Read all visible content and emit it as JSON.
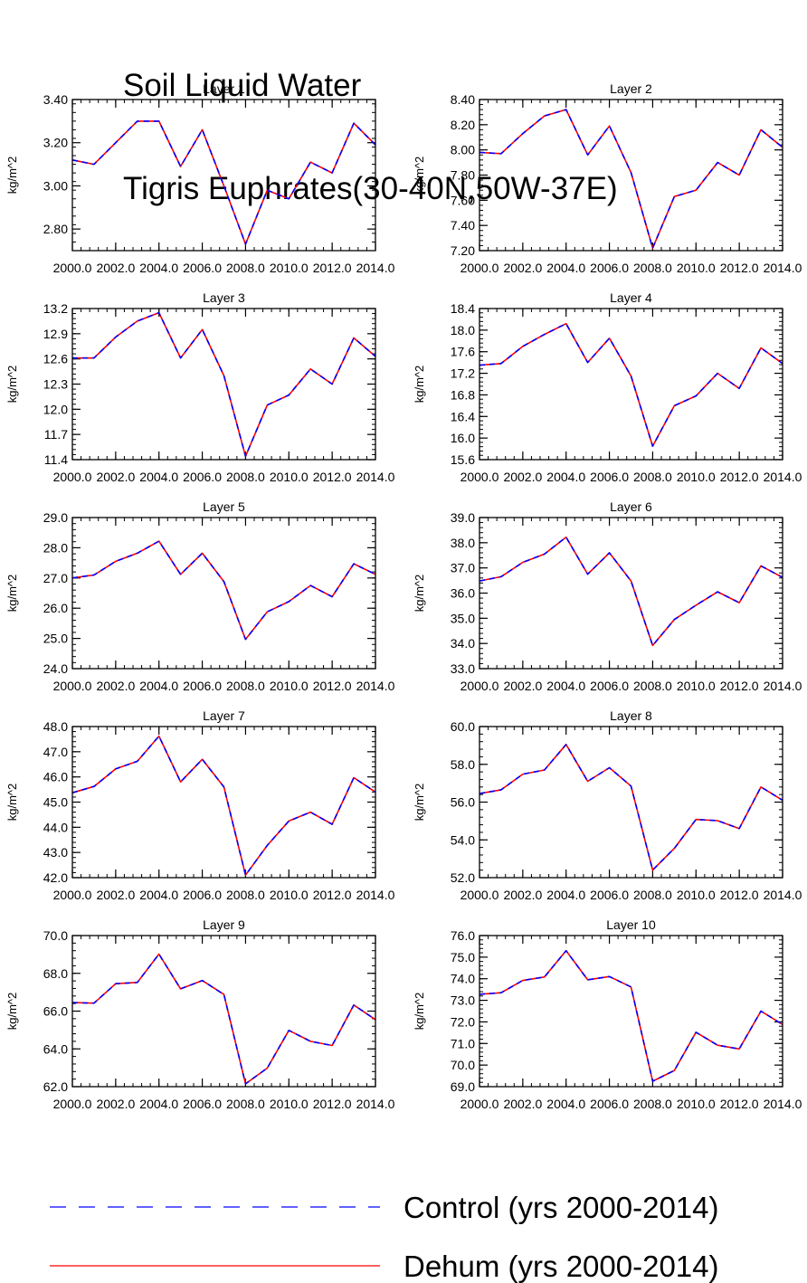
{
  "title": {
    "line1": "Soil Liquid Water",
    "line2": "Tigris Euphrates(30-40N,50W-37E)"
  },
  "colors": {
    "control": "#0000ff",
    "dehum": "#ff0000",
    "axis": "#000000"
  },
  "legend": {
    "control_label": "Control (yrs 2000-2014)",
    "dehum_label": "Dehum (yrs 2000-2014)"
  },
  "chart_data": [
    {
      "type": "line",
      "title": "Layer 1",
      "ylabel": "kg/m^2",
      "x": [
        2000,
        2001,
        2002,
        2003,
        2004,
        2005,
        2006,
        2007,
        2008,
        2009,
        2010,
        2011,
        2012,
        2013,
        2014
      ],
      "xticks": [
        "2000.0",
        "2002.0",
        "2004.0",
        "2006.0",
        "2008.0",
        "2010.0",
        "2012.0",
        "2014.0"
      ],
      "yticks": [
        "2.80",
        "3.00",
        "3.20",
        "3.40"
      ],
      "ylim": [
        2.7,
        3.4
      ],
      "series": [
        {
          "name": "Control (yrs 2000-2014)",
          "values": [
            3.12,
            3.1,
            3.2,
            3.3,
            3.3,
            3.09,
            3.26,
            3.0,
            2.73,
            2.98,
            2.94,
            3.11,
            3.06,
            3.29,
            3.19
          ]
        },
        {
          "name": "Dehum (yrs 2000-2014)",
          "values": [
            3.12,
            3.1,
            3.2,
            3.3,
            3.3,
            3.09,
            3.26,
            3.0,
            2.73,
            2.98,
            2.94,
            3.11,
            3.06,
            3.29,
            3.19
          ]
        }
      ]
    },
    {
      "type": "line",
      "title": "Layer 2",
      "ylabel": "kg/m^2",
      "x": [
        2000,
        2001,
        2002,
        2003,
        2004,
        2005,
        2006,
        2007,
        2008,
        2009,
        2010,
        2011,
        2012,
        2013,
        2014
      ],
      "xticks": [
        "2000.0",
        "2002.0",
        "2004.0",
        "2006.0",
        "2008.0",
        "2010.0",
        "2012.0",
        "2014.0"
      ],
      "yticks": [
        "7.20",
        "7.40",
        "7.60",
        "7.80",
        "8.00",
        "8.20",
        "8.40"
      ],
      "ylim": [
        7.2,
        8.4
      ],
      "series": [
        {
          "name": "Control (yrs 2000-2014)",
          "values": [
            7.98,
            7.97,
            8.13,
            8.27,
            8.32,
            7.96,
            8.19,
            7.82,
            7.22,
            7.63,
            7.68,
            7.9,
            7.8,
            8.16,
            8.02
          ]
        },
        {
          "name": "Dehum (yrs 2000-2014)",
          "values": [
            7.98,
            7.97,
            8.13,
            8.27,
            8.32,
            7.96,
            8.19,
            7.82,
            7.22,
            7.63,
            7.68,
            7.9,
            7.8,
            8.16,
            8.02
          ]
        }
      ]
    },
    {
      "type": "line",
      "title": "Layer 3",
      "ylabel": "kg/m^2",
      "x": [
        2000,
        2001,
        2002,
        2003,
        2004,
        2005,
        2006,
        2007,
        2008,
        2009,
        2010,
        2011,
        2012,
        2013,
        2014
      ],
      "xticks": [
        "2000.0",
        "2002.0",
        "2004.0",
        "2006.0",
        "2008.0",
        "2010.0",
        "2012.0",
        "2014.0"
      ],
      "yticks": [
        "11.4",
        "11.7",
        "12.0",
        "12.3",
        "12.6",
        "12.9",
        "13.2"
      ],
      "ylim": [
        11.4,
        13.2
      ],
      "series": [
        {
          "name": "Control (yrs 2000-2014)",
          "values": [
            12.61,
            12.61,
            12.86,
            13.05,
            13.15,
            12.61,
            12.95,
            12.4,
            11.44,
            12.05,
            12.17,
            12.48,
            12.3,
            12.85,
            12.63
          ]
        },
        {
          "name": "Dehum (yrs 2000-2014)",
          "values": [
            12.61,
            12.61,
            12.86,
            13.05,
            13.15,
            12.61,
            12.95,
            12.4,
            11.44,
            12.05,
            12.17,
            12.48,
            12.3,
            12.85,
            12.63
          ]
        }
      ]
    },
    {
      "type": "line",
      "title": "Layer 4",
      "ylabel": "kg/m^2",
      "x": [
        2000,
        2001,
        2002,
        2003,
        2004,
        2005,
        2006,
        2007,
        2008,
        2009,
        2010,
        2011,
        2012,
        2013,
        2014
      ],
      "xticks": [
        "2000.0",
        "2002.0",
        "2004.0",
        "2006.0",
        "2008.0",
        "2010.0",
        "2012.0",
        "2014.0"
      ],
      "yticks": [
        "15.6",
        "16.0",
        "16.4",
        "16.8",
        "17.2",
        "17.6",
        "18.0",
        "18.4"
      ],
      "ylim": [
        15.6,
        18.4
      ],
      "series": [
        {
          "name": "Control (yrs 2000-2014)",
          "values": [
            17.35,
            17.38,
            17.7,
            17.92,
            18.12,
            17.4,
            17.85,
            17.15,
            15.85,
            16.6,
            16.78,
            17.2,
            16.92,
            17.67,
            17.38
          ]
        },
        {
          "name": "Dehum (yrs 2000-2014)",
          "values": [
            17.35,
            17.38,
            17.7,
            17.92,
            18.12,
            17.4,
            17.85,
            17.15,
            15.85,
            16.6,
            16.78,
            17.2,
            16.92,
            17.67,
            17.38
          ]
        }
      ]
    },
    {
      "type": "line",
      "title": "Layer 5",
      "ylabel": "kg/m^2",
      "x": [
        2000,
        2001,
        2002,
        2003,
        2004,
        2005,
        2006,
        2007,
        2008,
        2009,
        2010,
        2011,
        2012,
        2013,
        2014
      ],
      "xticks": [
        "2000.0",
        "2002.0",
        "2004.0",
        "2006.0",
        "2008.0",
        "2010.0",
        "2012.0",
        "2014.0"
      ],
      "yticks": [
        "24.0",
        "25.0",
        "26.0",
        "27.0",
        "28.0",
        "29.0"
      ],
      "ylim": [
        24.0,
        29.0
      ],
      "series": [
        {
          "name": "Control (yrs 2000-2014)",
          "values": [
            27.0,
            27.1,
            27.55,
            27.82,
            28.22,
            27.12,
            27.82,
            26.88,
            24.97,
            25.88,
            26.22,
            26.75,
            26.38,
            27.47,
            27.12
          ]
        },
        {
          "name": "Dehum (yrs 2000-2014)",
          "values": [
            27.0,
            27.1,
            27.55,
            27.82,
            28.22,
            27.12,
            27.82,
            26.88,
            24.97,
            25.88,
            26.22,
            26.75,
            26.38,
            27.47,
            27.12
          ]
        }
      ]
    },
    {
      "type": "line",
      "title": "Layer 6",
      "ylabel": "kg/m^2",
      "x": [
        2000,
        2001,
        2002,
        2003,
        2004,
        2005,
        2006,
        2007,
        2008,
        2009,
        2010,
        2011,
        2012,
        2013,
        2014
      ],
      "xticks": [
        "2000.0",
        "2002.0",
        "2004.0",
        "2006.0",
        "2008.0",
        "2010.0",
        "2012.0",
        "2014.0"
      ],
      "yticks": [
        "33.0",
        "34.0",
        "35.0",
        "36.0",
        "37.0",
        "38.0",
        "39.0"
      ],
      "ylim": [
        33.0,
        39.0
      ],
      "series": [
        {
          "name": "Control (yrs 2000-2014)",
          "values": [
            36.48,
            36.65,
            37.22,
            37.55,
            38.22,
            36.75,
            37.6,
            36.48,
            33.92,
            34.95,
            35.52,
            36.05,
            35.62,
            37.08,
            36.62
          ]
        },
        {
          "name": "Dehum (yrs 2000-2014)",
          "values": [
            36.48,
            36.65,
            37.22,
            37.55,
            38.22,
            36.75,
            37.6,
            36.48,
            33.92,
            34.95,
            35.52,
            36.05,
            35.62,
            37.08,
            36.62
          ]
        }
      ]
    },
    {
      "type": "line",
      "title": "Layer 7",
      "ylabel": "kg/m^2",
      "x": [
        2000,
        2001,
        2002,
        2003,
        2004,
        2005,
        2006,
        2007,
        2008,
        2009,
        2010,
        2011,
        2012,
        2013,
        2014
      ],
      "xticks": [
        "2000.0",
        "2002.0",
        "2004.0",
        "2006.0",
        "2008.0",
        "2010.0",
        "2012.0",
        "2014.0"
      ],
      "yticks": [
        "42.0",
        "43.0",
        "44.0",
        "45.0",
        "46.0",
        "47.0",
        "48.0"
      ],
      "ylim": [
        42.0,
        48.0
      ],
      "series": [
        {
          "name": "Control (yrs 2000-2014)",
          "values": [
            45.37,
            45.62,
            46.32,
            46.62,
            47.62,
            45.8,
            46.7,
            45.6,
            42.1,
            43.28,
            44.25,
            44.6,
            44.12,
            45.97,
            45.4
          ]
        },
        {
          "name": "Dehum (yrs 2000-2014)",
          "values": [
            45.37,
            45.62,
            46.32,
            46.62,
            47.62,
            45.8,
            46.7,
            45.6,
            42.1,
            43.28,
            44.25,
            44.6,
            44.12,
            45.97,
            45.4
          ]
        }
      ]
    },
    {
      "type": "line",
      "title": "Layer 8",
      "ylabel": "kg/m^2",
      "x": [
        2000,
        2001,
        2002,
        2003,
        2004,
        2005,
        2006,
        2007,
        2008,
        2009,
        2010,
        2011,
        2012,
        2013,
        2014
      ],
      "xticks": [
        "2000.0",
        "2002.0",
        "2004.0",
        "2006.0",
        "2008.0",
        "2010.0",
        "2012.0",
        "2014.0"
      ],
      "yticks": [
        "52.0",
        "54.0",
        "56.0",
        "58.0",
        "60.0"
      ],
      "ylim": [
        52.0,
        60.0
      ],
      "series": [
        {
          "name": "Control (yrs 2000-2014)",
          "values": [
            56.45,
            56.65,
            57.48,
            57.7,
            59.05,
            57.1,
            57.82,
            56.85,
            52.4,
            53.55,
            55.08,
            55.02,
            54.6,
            56.8,
            56.1
          ]
        },
        {
          "name": "Dehum (yrs 2000-2014)",
          "values": [
            56.45,
            56.65,
            57.48,
            57.7,
            59.05,
            57.1,
            57.82,
            56.85,
            52.4,
            53.55,
            55.08,
            55.02,
            54.6,
            56.8,
            56.1
          ]
        }
      ]
    },
    {
      "type": "line",
      "title": "Layer 9",
      "ylabel": "kg/m^2",
      "x": [
        2000,
        2001,
        2002,
        2003,
        2004,
        2005,
        2006,
        2007,
        2008,
        2009,
        2010,
        2011,
        2012,
        2013,
        2014
      ],
      "xticks": [
        "2000.0",
        "2002.0",
        "2004.0",
        "2006.0",
        "2008.0",
        "2010.0",
        "2012.0",
        "2014.0"
      ],
      "yticks": [
        "62.0",
        "64.0",
        "66.0",
        "68.0",
        "70.0"
      ],
      "ylim": [
        62.0,
        70.0
      ],
      "series": [
        {
          "name": "Control (yrs 2000-2014)",
          "values": [
            66.45,
            66.42,
            67.45,
            67.52,
            69.02,
            67.18,
            67.62,
            66.88,
            62.15,
            62.98,
            64.98,
            64.4,
            64.18,
            66.32,
            65.55
          ]
        },
        {
          "name": "Dehum (yrs 2000-2014)",
          "values": [
            66.45,
            66.42,
            67.45,
            67.52,
            69.02,
            67.18,
            67.62,
            66.88,
            62.15,
            62.98,
            64.98,
            64.4,
            64.18,
            66.32,
            65.55
          ]
        }
      ]
    },
    {
      "type": "line",
      "title": "Layer 10",
      "ylabel": "kg/m^2",
      "x": [
        2000,
        2001,
        2002,
        2003,
        2004,
        2005,
        2006,
        2007,
        2008,
        2009,
        2010,
        2011,
        2012,
        2013,
        2014
      ],
      "xticks": [
        "2000.0",
        "2002.0",
        "2004.0",
        "2006.0",
        "2008.0",
        "2010.0",
        "2012.0",
        "2014.0"
      ],
      "yticks": [
        "69.0",
        "70.0",
        "71.0",
        "72.0",
        "73.0",
        "74.0",
        "75.0",
        "76.0"
      ],
      "ylim": [
        69.0,
        76.0
      ],
      "series": [
        {
          "name": "Control (yrs 2000-2014)",
          "values": [
            73.28,
            73.35,
            73.92,
            74.08,
            75.3,
            73.95,
            74.1,
            73.62,
            69.25,
            69.75,
            71.52,
            70.92,
            70.75,
            72.5,
            71.88
          ]
        },
        {
          "name": "Dehum (yrs 2000-2014)",
          "values": [
            73.28,
            73.35,
            73.92,
            74.08,
            75.3,
            73.95,
            74.1,
            73.62,
            69.25,
            69.75,
            71.52,
            70.92,
            70.75,
            72.5,
            71.88
          ]
        }
      ]
    }
  ]
}
